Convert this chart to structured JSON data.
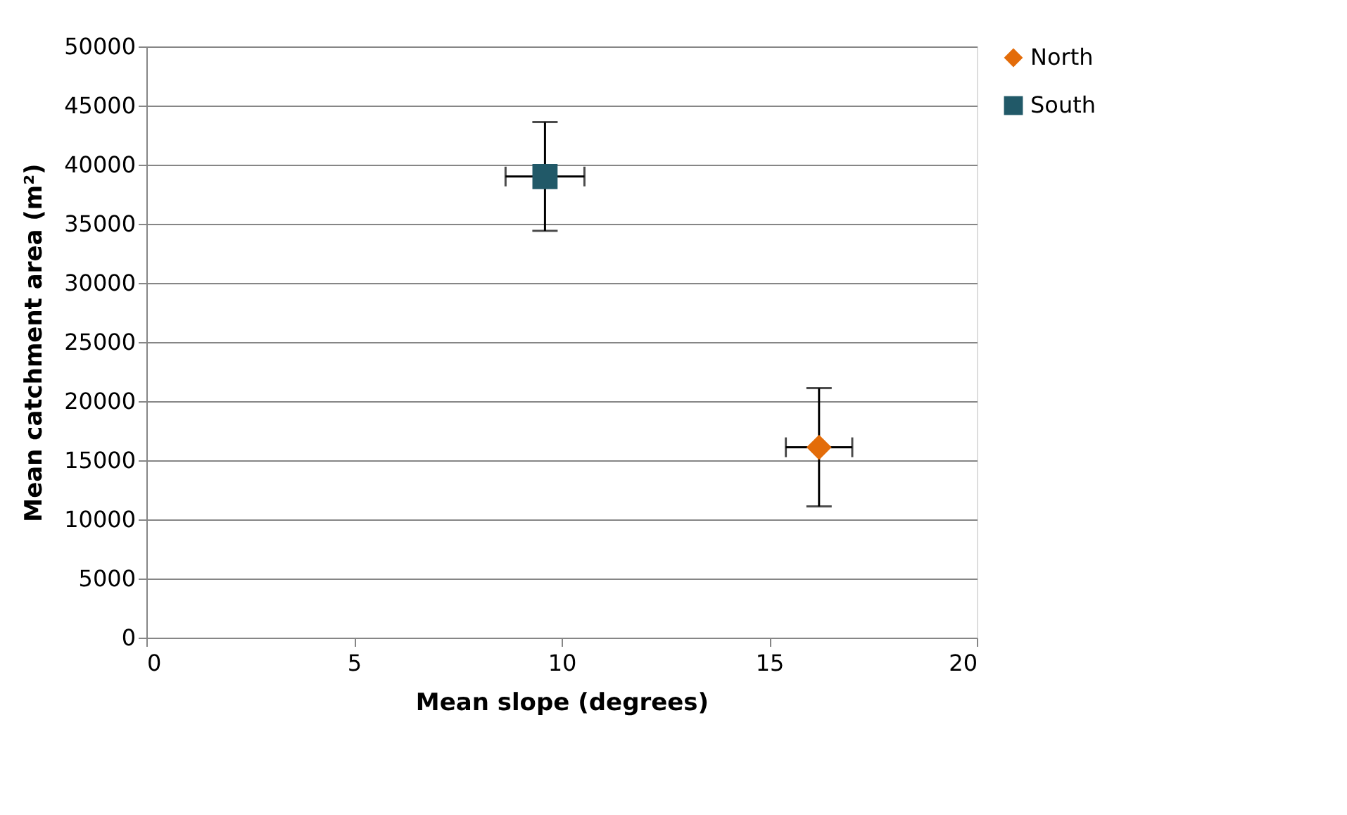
{
  "chart_data": {
    "type": "scatter",
    "xlabel": "Mean slope (degrees)",
    "ylabel": "Mean catchment area (m²)",
    "xlim": [
      0,
      20
    ],
    "xticks": [
      0,
      5,
      10,
      15,
      20
    ],
    "ylim": [
      0,
      50000
    ],
    "yticks": [
      0,
      5000,
      10000,
      15000,
      20000,
      25000,
      30000,
      35000,
      40000,
      45000,
      50000
    ],
    "grid": "y",
    "legend": "right",
    "series": [
      {
        "name": "North",
        "color": "#e36c09",
        "marker": "diamond",
        "x": [
          16.2
        ],
        "values": [
          16100
        ],
        "errors": [
          5000
        ],
        "xerrors": [
          0.8
        ]
      },
      {
        "name": "South",
        "color": "#215968",
        "marker": "square",
        "x": [
          9.6
        ],
        "values": [
          39000
        ],
        "errors": [
          4600
        ],
        "xerrors": [
          0.95
        ]
      }
    ]
  }
}
